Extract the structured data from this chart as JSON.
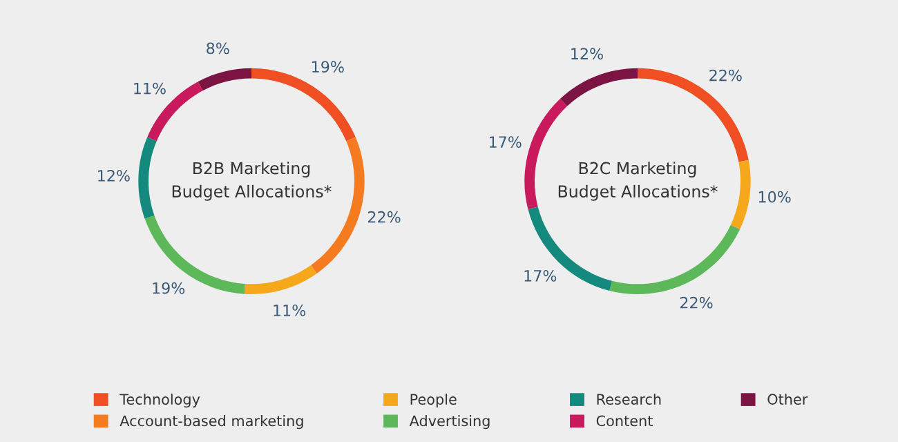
{
  "chart_data": [
    {
      "type": "donut",
      "title": "B2B Marketing\nBudget Allocations*",
      "categories": [
        "Technology",
        "Account-based marketing",
        "People",
        "Advertising",
        "Research",
        "Content",
        "Other"
      ],
      "values": [
        19,
        22,
        11,
        19,
        12,
        11,
        8
      ],
      "value_labels": [
        "19%",
        "22%",
        "11%",
        "19%",
        "12%",
        "11%",
        "8%"
      ],
      "colors": [
        "#f04e23",
        "#f47b20",
        "#f6a81c",
        "#5db85a",
        "#14897e",
        "#c81a5c",
        "#7b1343"
      ],
      "legend": "bottom"
    },
    {
      "type": "donut",
      "title": "B2C Marketing\nBudget Allocations*",
      "categories": [
        null,
        null,
        null,
        null,
        null,
        null
      ],
      "values": [
        22,
        10,
        22,
        17,
        17,
        12
      ],
      "value_labels": [
        "22%",
        "10%",
        "22%",
        "17%",
        "17%",
        "12%"
      ],
      "colors": [
        "#f04e23",
        "#f6a81c",
        "#5db85a",
        "#14897e",
        "#c81a5c",
        "#7b1343"
      ]
    }
  ]
}
